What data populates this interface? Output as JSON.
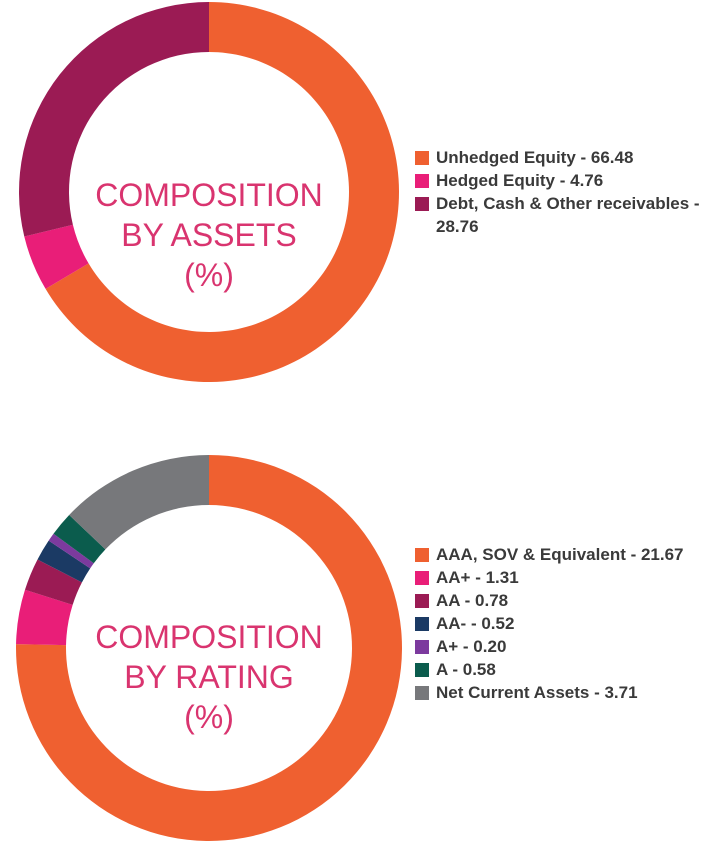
{
  "chart_data": [
    {
      "type": "pie",
      "center_label": [
        "COMPOSITION",
        "BY ASSETS",
        "(%)"
      ],
      "slices": [
        {
          "label": "Unhedged Equity - 66.48",
          "value": 66.48,
          "color": "#ef6030"
        },
        {
          "label": "Hedged Equity - 4.76",
          "value": 4.76,
          "color": "#e91e78"
        },
        {
          "label": "Debt, Cash & Other receivables - 28.76",
          "value": 28.76,
          "color": "#9b1b54"
        }
      ],
      "legend_position": "right"
    },
    {
      "type": "pie",
      "center_label": [
        "COMPOSITION",
        "BY RATING",
        "(%)"
      ],
      "slices": [
        {
          "label": "AAA, SOV & Equivalent - 21.67",
          "value": 21.67,
          "color": "#ef6030"
        },
        {
          "label": "AA+ - 1.31",
          "value": 1.31,
          "color": "#e91e78"
        },
        {
          "label": "AA - 0.78",
          "value": 0.78,
          "color": "#9b1b54"
        },
        {
          "label": "AA- - 0.52",
          "value": 0.52,
          "color": "#1b3a64"
        },
        {
          "label": "A+ - 0.20",
          "value": 0.2,
          "color": "#7c3a9e"
        },
        {
          "label": "A - 0.58",
          "value": 0.58,
          "color": "#0b5c4d"
        },
        {
          "label": "Net Current Assets - 3.71",
          "value": 3.71,
          "color": "#77787b"
        }
      ],
      "legend_position": "right"
    }
  ]
}
